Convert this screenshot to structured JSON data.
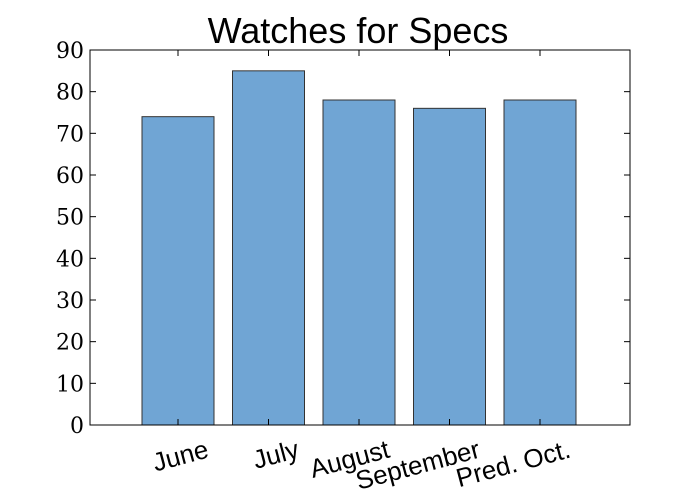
{
  "chart_data": {
    "type": "bar",
    "title": "Watches for Specs",
    "xlabel": "",
    "ylabel": "",
    "categories": [
      "June",
      "July",
      "August",
      "September",
      "Pred. Oct."
    ],
    "values": [
      74,
      85,
      78,
      76,
      78
    ],
    "ylim": [
      0,
      90
    ],
    "yticks": [
      0,
      10,
      20,
      30,
      40,
      50,
      60,
      70,
      80,
      90
    ],
    "grid": false,
    "bar_color": "#70a5d4",
    "bar_edge_color": "#333333"
  }
}
